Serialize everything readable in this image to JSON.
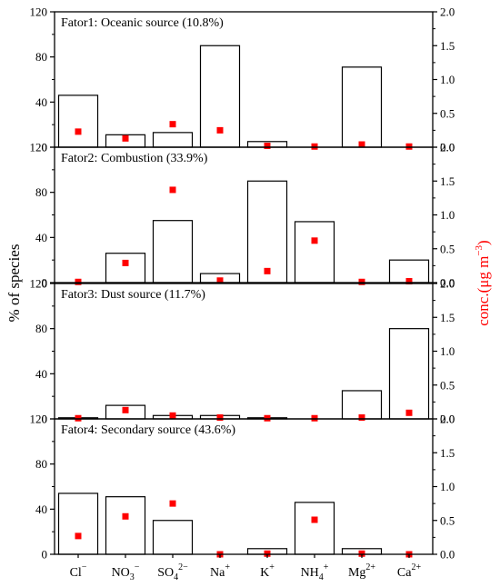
{
  "chart_data": {
    "type": "bar",
    "categories": [
      "Cl⁻",
      "NO₃⁻",
      "SO₄²⁻",
      "Na⁺",
      "K⁺",
      "NH₄⁺",
      "Mg²⁺",
      "Ca²⁺"
    ],
    "category_labels": [
      {
        "base": "Cl",
        "sub": "",
        "sup": "−"
      },
      {
        "base": "NO",
        "sub": "3",
        "sup": "−"
      },
      {
        "base": "SO",
        "sub": "4",
        "sup": "2−"
      },
      {
        "base": "Na",
        "sub": "",
        "sup": "+"
      },
      {
        "base": "K",
        "sub": "",
        "sup": "+"
      },
      {
        "base": "NH",
        "sub": "4",
        "sup": "+"
      },
      {
        "base": "Mg",
        "sub": "",
        "sup": "2+"
      },
      {
        "base": "Ca",
        "sub": "",
        "sup": "2+"
      }
    ],
    "ylabel_left": "% of species",
    "ylabel_right": "conc.(μg m⁻³)",
    "ylabel_right_parts": {
      "base": "conc.(μg m",
      "sup": "−3",
      "tail": ")"
    },
    "ylim_left": [
      0,
      120
    ],
    "ylim_right": [
      0,
      2.0
    ],
    "yticks_left": [
      0,
      40,
      80,
      120
    ],
    "yticks_left_labels": [
      "0",
      "40",
      "80",
      "120"
    ],
    "yticks_right": [
      0,
      0.5,
      1.0,
      1.5,
      2.0
    ],
    "yticks_right_labels": [
      "0.0",
      "0.5",
      "1.0",
      "1.5",
      "2.0"
    ],
    "bar_series_name": "% of species",
    "point_series_name": "conc.",
    "point_color": "#ff0000",
    "bar_fill": "#ffffff",
    "bar_edge": "#000000",
    "grid": false,
    "panels": [
      {
        "title": "Fator1: Oceanic source (10.8%)",
        "percent": [
          46,
          11,
          13,
          90,
          5,
          0,
          71,
          0
        ],
        "conc": [
          0.23,
          0.13,
          0.34,
          0.25,
          0.02,
          0.01,
          0.04,
          0.01
        ]
      },
      {
        "title": "Fator2: Combustion (33.9%)",
        "percent": [
          0,
          26,
          55,
          8,
          90,
          54,
          0,
          20
        ],
        "conc": [
          0.01,
          0.29,
          1.37,
          0.03,
          0.17,
          0.62,
          0.01,
          0.02
        ]
      },
      {
        "title": "Fator3: Dust source (11.7%)",
        "percent": [
          1,
          12,
          3,
          3,
          1,
          0,
          25,
          80
        ],
        "conc": [
          0.01,
          0.13,
          0.05,
          0.02,
          0.01,
          0.01,
          0.02,
          0.09
        ]
      },
      {
        "title": "Fator4: Secondary source (43.6%)",
        "percent": [
          54,
          51,
          30,
          0,
          5,
          46,
          5,
          0
        ],
        "conc": [
          0.27,
          0.56,
          0.75,
          0.0,
          0.01,
          0.51,
          0.01,
          0.0
        ]
      }
    ]
  }
}
